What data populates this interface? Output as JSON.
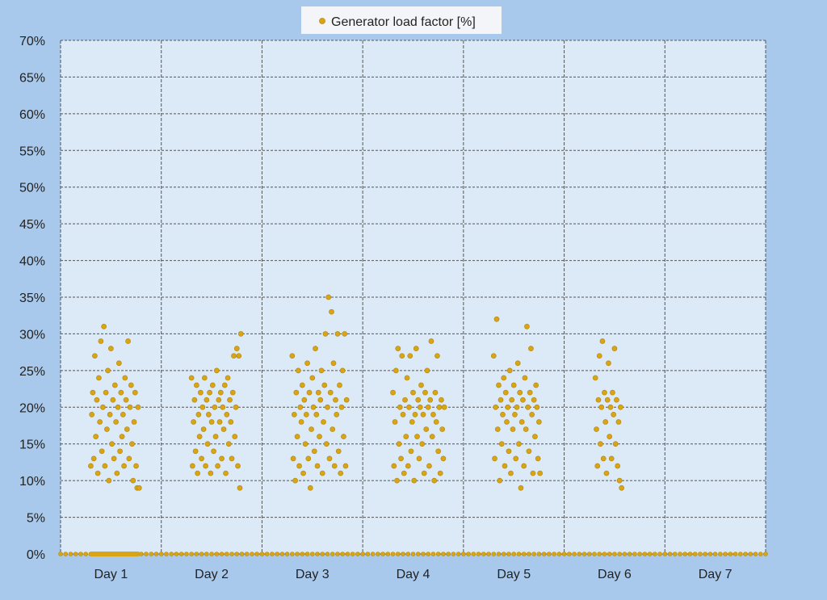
{
  "chart_data": {
    "type": "scatter",
    "title": "",
    "xlabel": "",
    "ylabel": "",
    "legend": {
      "position": "top",
      "entries": [
        "Generator load factor [%]"
      ]
    },
    "grid": true,
    "grid_style": "dashed",
    "xlim": [
      0,
      7
    ],
    "ylim": [
      0,
      70
    ],
    "y_ticks": [
      "0%",
      "5%",
      "10%",
      "15%",
      "20%",
      "25%",
      "30%",
      "35%",
      "40%",
      "45%",
      "50%",
      "55%",
      "60%",
      "65%",
      "70%"
    ],
    "x_categories": [
      "Day 1",
      "Day 2",
      "Day 3",
      "Day 4",
      "Day 5",
      "Day 6",
      "Day 7"
    ],
    "colors": {
      "background": "#a8c9ec",
      "plot_area": "#dce9f6",
      "marker_fill": "#d9a514",
      "marker_edge": "#b58a0e",
      "grid": "#555555"
    },
    "series": [
      {
        "name": "Generator load factor [%]",
        "points": [
          [
            0.3,
            12
          ],
          [
            0.31,
            19
          ],
          [
            0.32,
            22
          ],
          [
            0.33,
            13
          ],
          [
            0.34,
            27
          ],
          [
            0.35,
            16
          ],
          [
            0.36,
            21
          ],
          [
            0.37,
            11
          ],
          [
            0.38,
            24
          ],
          [
            0.39,
            18
          ],
          [
            0.4,
            29
          ],
          [
            0.41,
            14
          ],
          [
            0.42,
            20
          ],
          [
            0.43,
            31
          ],
          [
            0.44,
            12
          ],
          [
            0.45,
            22
          ],
          [
            0.46,
            17
          ],
          [
            0.47,
            25
          ],
          [
            0.48,
            10
          ],
          [
            0.49,
            19
          ],
          [
            0.5,
            28
          ],
          [
            0.51,
            15
          ],
          [
            0.52,
            21
          ],
          [
            0.53,
            13
          ],
          [
            0.54,
            23
          ],
          [
            0.55,
            18
          ],
          [
            0.56,
            11
          ],
          [
            0.57,
            20
          ],
          [
            0.58,
            26
          ],
          [
            0.59,
            14
          ],
          [
            0.6,
            22
          ],
          [
            0.61,
            16
          ],
          [
            0.62,
            19
          ],
          [
            0.63,
            12
          ],
          [
            0.64,
            24
          ],
          [
            0.65,
            21
          ],
          [
            0.66,
            17
          ],
          [
            0.67,
            29
          ],
          [
            0.68,
            13
          ],
          [
            0.69,
            20
          ],
          [
            0.7,
            23
          ],
          [
            0.71,
            15
          ],
          [
            0.72,
            10
          ],
          [
            0.73,
            18
          ],
          [
            0.74,
            22
          ],
          [
            0.75,
            12
          ],
          [
            0.76,
            9
          ],
          [
            0.77,
            20
          ],
          [
            0.78,
            9
          ],
          [
            1.3,
            24
          ],
          [
            1.31,
            12
          ],
          [
            1.32,
            18
          ],
          [
            1.33,
            21
          ],
          [
            1.34,
            14
          ],
          [
            1.35,
            23
          ],
          [
            1.36,
            11
          ],
          [
            1.37,
            19
          ],
          [
            1.38,
            16
          ],
          [
            1.39,
            22
          ],
          [
            1.4,
            13
          ],
          [
            1.41,
            20
          ],
          [
            1.42,
            17
          ],
          [
            1.43,
            24
          ],
          [
            1.44,
            12
          ],
          [
            1.45,
            21
          ],
          [
            1.46,
            15
          ],
          [
            1.47,
            19
          ],
          [
            1.48,
            22
          ],
          [
            1.49,
            11
          ],
          [
            1.5,
            18
          ],
          [
            1.51,
            23
          ],
          [
            1.52,
            14
          ],
          [
            1.53,
            20
          ],
          [
            1.54,
            16
          ],
          [
            1.55,
            25
          ],
          [
            1.56,
            12
          ],
          [
            1.57,
            21
          ],
          [
            1.58,
            18
          ],
          [
            1.59,
            22
          ],
          [
            1.6,
            13
          ],
          [
            1.61,
            20
          ],
          [
            1.62,
            17
          ],
          [
            1.63,
            23
          ],
          [
            1.64,
            11
          ],
          [
            1.65,
            19
          ],
          [
            1.66,
            24
          ],
          [
            1.67,
            15
          ],
          [
            1.68,
            21
          ],
          [
            1.69,
            18
          ],
          [
            1.7,
            13
          ],
          [
            1.71,
            22
          ],
          [
            1.72,
            27
          ],
          [
            1.73,
            16
          ],
          [
            1.74,
            20
          ],
          [
            1.75,
            28
          ],
          [
            1.76,
            12
          ],
          [
            1.77,
            27
          ],
          [
            1.78,
            9
          ],
          [
            1.79,
            30
          ],
          [
            2.3,
            27
          ],
          [
            2.31,
            13
          ],
          [
            2.32,
            19
          ],
          [
            2.33,
            10
          ],
          [
            2.34,
            22
          ],
          [
            2.35,
            16
          ],
          [
            2.36,
            25
          ],
          [
            2.37,
            12
          ],
          [
            2.38,
            20
          ],
          [
            2.39,
            18
          ],
          [
            2.4,
            23
          ],
          [
            2.41,
            11
          ],
          [
            2.42,
            21
          ],
          [
            2.43,
            15
          ],
          [
            2.44,
            19
          ],
          [
            2.45,
            26
          ],
          [
            2.46,
            13
          ],
          [
            2.47,
            22
          ],
          [
            2.48,
            9
          ],
          [
            2.49,
            17
          ],
          [
            2.5,
            24
          ],
          [
            2.51,
            20
          ],
          [
            2.52,
            14
          ],
          [
            2.53,
            28
          ],
          [
            2.54,
            19
          ],
          [
            2.55,
            12
          ],
          [
            2.56,
            22
          ],
          [
            2.57,
            16
          ],
          [
            2.58,
            21
          ],
          [
            2.59,
            25
          ],
          [
            2.6,
            11
          ],
          [
            2.61,
            18
          ],
          [
            2.62,
            23
          ],
          [
            2.63,
            30
          ],
          [
            2.64,
            15
          ],
          [
            2.65,
            20
          ],
          [
            2.66,
            35
          ],
          [
            2.67,
            13
          ],
          [
            2.68,
            22
          ],
          [
            2.69,
            33
          ],
          [
            2.7,
            17
          ],
          [
            2.71,
            26
          ],
          [
            2.72,
            12
          ],
          [
            2.73,
            21
          ],
          [
            2.74,
            19
          ],
          [
            2.75,
            30
          ],
          [
            2.76,
            14
          ],
          [
            2.77,
            23
          ],
          [
            2.78,
            11
          ],
          [
            2.79,
            20
          ],
          [
            2.8,
            25
          ],
          [
            2.81,
            16
          ],
          [
            2.82,
            30
          ],
          [
            2.83,
            12
          ],
          [
            2.84,
            21
          ],
          [
            3.3,
            22
          ],
          [
            3.31,
            12
          ],
          [
            3.32,
            18
          ],
          [
            3.33,
            25
          ],
          [
            3.34,
            10
          ],
          [
            3.35,
            28
          ],
          [
            3.36,
            15
          ],
          [
            3.37,
            20
          ],
          [
            3.38,
            13
          ],
          [
            3.39,
            27
          ],
          [
            3.4,
            19
          ],
          [
            3.41,
            11
          ],
          [
            3.42,
            21
          ],
          [
            3.43,
            16
          ],
          [
            3.44,
            24
          ],
          [
            3.45,
            12
          ],
          [
            3.46,
            20
          ],
          [
            3.47,
            27
          ],
          [
            3.48,
            14
          ],
          [
            3.49,
            18
          ],
          [
            3.5,
            22
          ],
          [
            3.51,
            10
          ],
          [
            3.52,
            19
          ],
          [
            3.53,
            28
          ],
          [
            3.54,
            16
          ],
          [
            3.55,
            21
          ],
          [
            3.56,
            13
          ],
          [
            3.57,
            20
          ],
          [
            3.58,
            23
          ],
          [
            3.59,
            15
          ],
          [
            3.6,
            19
          ],
          [
            3.61,
            11
          ],
          [
            3.62,
            22
          ],
          [
            3.63,
            17
          ],
          [
            3.64,
            25
          ],
          [
            3.65,
            20
          ],
          [
            3.66,
            12
          ],
          [
            3.67,
            21
          ],
          [
            3.68,
            29
          ],
          [
            3.69,
            16
          ],
          [
            3.7,
            19
          ],
          [
            3.71,
            10
          ],
          [
            3.72,
            22
          ],
          [
            3.73,
            18
          ],
          [
            3.74,
            27
          ],
          [
            3.75,
            14
          ],
          [
            3.76,
            20
          ],
          [
            3.77,
            11
          ],
          [
            3.78,
            21
          ],
          [
            3.79,
            17
          ],
          [
            3.8,
            13
          ],
          [
            3.81,
            20
          ],
          [
            4.3,
            27
          ],
          [
            4.31,
            13
          ],
          [
            4.32,
            20
          ],
          [
            4.33,
            32
          ],
          [
            4.34,
            17
          ],
          [
            4.35,
            23
          ],
          [
            4.36,
            10
          ],
          [
            4.37,
            21
          ],
          [
            4.38,
            15
          ],
          [
            4.39,
            19
          ],
          [
            4.4,
            24
          ],
          [
            4.41,
            12
          ],
          [
            4.42,
            22
          ],
          [
            4.43,
            18
          ],
          [
            4.44,
            20
          ],
          [
            4.45,
            14
          ],
          [
            4.46,
            25
          ],
          [
            4.47,
            11
          ],
          [
            4.48,
            21
          ],
          [
            4.49,
            17
          ],
          [
            4.5,
            23
          ],
          [
            4.51,
            19
          ],
          [
            4.52,
            13
          ],
          [
            4.53,
            20
          ],
          [
            4.54,
            26
          ],
          [
            4.55,
            15
          ],
          [
            4.56,
            22
          ],
          [
            4.57,
            9
          ],
          [
            4.58,
            18
          ],
          [
            4.59,
            21
          ],
          [
            4.6,
            12
          ],
          [
            4.61,
            24
          ],
          [
            4.62,
            17
          ],
          [
            4.63,
            31
          ],
          [
            4.64,
            20
          ],
          [
            4.65,
            14
          ],
          [
            4.66,
            22
          ],
          [
            4.67,
            28
          ],
          [
            4.68,
            19
          ],
          [
            4.69,
            11
          ],
          [
            4.7,
            21
          ],
          [
            4.71,
            16
          ],
          [
            4.72,
            23
          ],
          [
            4.73,
            20
          ],
          [
            4.74,
            13
          ],
          [
            4.75,
            18
          ],
          [
            4.76,
            11
          ],
          [
            5.31,
            24
          ],
          [
            5.32,
            17
          ],
          [
            5.33,
            12
          ],
          [
            5.34,
            21
          ],
          [
            5.35,
            27
          ],
          [
            5.36,
            15
          ],
          [
            5.37,
            20
          ],
          [
            5.38,
            29
          ],
          [
            5.39,
            13
          ],
          [
            5.4,
            22
          ],
          [
            5.41,
            18
          ],
          [
            5.42,
            11
          ],
          [
            5.43,
            21
          ],
          [
            5.44,
            26
          ],
          [
            5.45,
            16
          ],
          [
            5.46,
            20
          ],
          [
            5.47,
            13
          ],
          [
            5.48,
            22
          ],
          [
            5.49,
            19
          ],
          [
            5.5,
            28
          ],
          [
            5.51,
            15
          ],
          [
            5.52,
            21
          ],
          [
            5.53,
            12
          ],
          [
            5.54,
            18
          ],
          [
            5.55,
            10
          ],
          [
            5.56,
            20
          ],
          [
            5.57,
            9
          ]
        ]
      }
    ],
    "zero_points": {
      "y": 0,
      "x_start": 0,
      "x_end": 7,
      "x_step": 0.05
    },
    "zero_dense_ranges": [
      [
        0.3,
        0.78
      ],
      [
        1.3,
        0.79
      ],
      [
        2.3,
        0.84
      ],
      [
        3.3,
        0.81
      ],
      [
        4.3,
        0.76
      ],
      [
        5.31,
        0.56
      ]
    ]
  }
}
